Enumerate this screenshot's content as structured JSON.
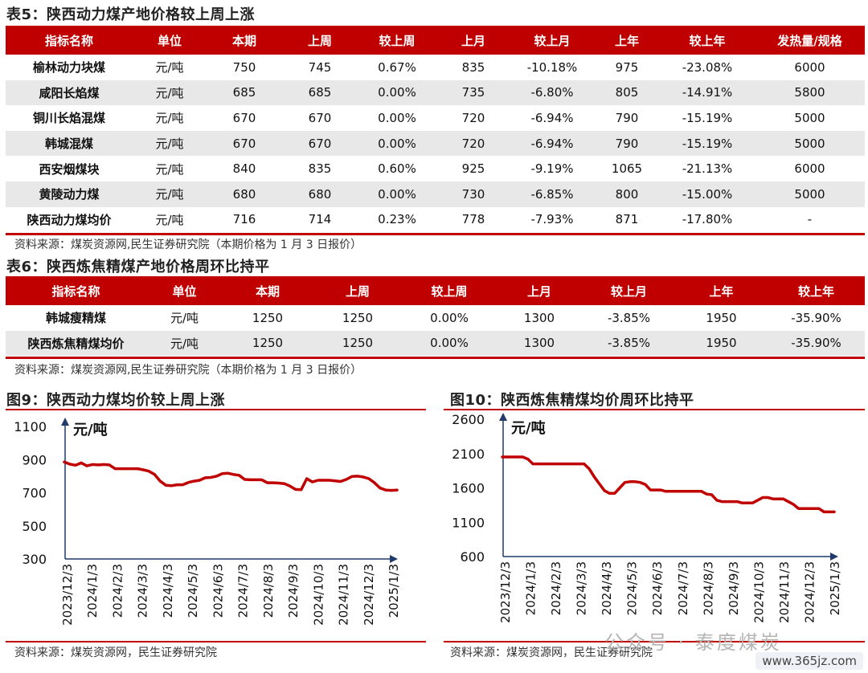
{
  "table5": {
    "title": "表5：陕西动力煤产地价格较上周上涨",
    "headers": [
      "指标名称",
      "单位",
      "本期",
      "上周",
      "较上周",
      "上月",
      "较上月",
      "上年",
      "较上年",
      "发热量/规格"
    ],
    "rows": [
      [
        "榆林动力块煤",
        "元/吨",
        "750",
        "745",
        "0.67%",
        "835",
        "-10.18%",
        "975",
        "-23.08%",
        "6000"
      ],
      [
        "咸阳长焰煤",
        "元/吨",
        "685",
        "685",
        "0.00%",
        "735",
        "-6.80%",
        "805",
        "-14.91%",
        "5800"
      ],
      [
        "铜川长焰混煤",
        "元/吨",
        "670",
        "670",
        "0.00%",
        "720",
        "-6.94%",
        "790",
        "-15.19%",
        "5000"
      ],
      [
        "韩城混煤",
        "元/吨",
        "670",
        "670",
        "0.00%",
        "720",
        "-6.94%",
        "790",
        "-15.19%",
        "5000"
      ],
      [
        "西安烟煤块",
        "元/吨",
        "840",
        "835",
        "0.60%",
        "925",
        "-9.19%",
        "1065",
        "-21.13%",
        "6000"
      ],
      [
        "黄陵动力煤",
        "元/吨",
        "680",
        "680",
        "0.00%",
        "730",
        "-6.85%",
        "800",
        "-15.00%",
        "5000"
      ],
      [
        "陕西动力煤均价",
        "元/吨",
        "716",
        "714",
        "0.23%",
        "778",
        "-7.93%",
        "871",
        "-17.80%",
        "-"
      ]
    ],
    "source": "资料来源：煤炭资源网,民生证券研究院（本期价格为 1 月 3 日报价）"
  },
  "table6": {
    "title": "表6：陕西炼焦精煤产地价格周环比持平",
    "headers": [
      "指标名称",
      "单位",
      "本期",
      "上周",
      "较上周",
      "上月",
      "较上月",
      "上年",
      "较上年"
    ],
    "rows": [
      [
        "韩城瘦精煤",
        "元/吨",
        "1250",
        "1250",
        "0.00%",
        "1300",
        "-3.85%",
        "1950",
        "-35.90%"
      ],
      [
        "陕西炼焦精煤均价",
        "元/吨",
        "1250",
        "1250",
        "0.00%",
        "1300",
        "-3.85%",
        "1950",
        "-35.90%"
      ]
    ],
    "source": "资料来源：煤炭资源网,民生证券研究院（本期价格为 1 月 3 日报价）"
  },
  "chart_data": [
    {
      "type": "line",
      "title": "图9：陕西动力煤均价较上周上涨",
      "unit_label": "元/吨",
      "ylim": [
        300,
        1100
      ],
      "yticks": [
        300,
        500,
        700,
        900,
        1100
      ],
      "xticks": [
        "2023/12/3",
        "2024/1/3",
        "2024/2/3",
        "2024/3/3",
        "2024/4/3",
        "2024/5/3",
        "2024/6/3",
        "2024/7/3",
        "2024/8/3",
        "2024/9/3",
        "2024/10/3",
        "2024/11/3",
        "2024/12/3",
        "2025/1/3"
      ],
      "color": "#c00000",
      "values": [
        885,
        872,
        866,
        880,
        862,
        870,
        868,
        870,
        868,
        845,
        845,
        845,
        845,
        845,
        838,
        830,
        810,
        770,
        745,
        742,
        748,
        748,
        762,
        770,
        775,
        790,
        792,
        800,
        815,
        818,
        810,
        805,
        780,
        778,
        778,
        778,
        760,
        760,
        758,
        755,
        740,
        720,
        718,
        785,
        765,
        775,
        775,
        775,
        772,
        768,
        780,
        798,
        800,
        795,
        785,
        760,
        728,
        716,
        714,
        716
      ],
      "source": "资料来源：煤炭资源网，民生证券研究院"
    },
    {
      "type": "line",
      "title": "图10：陕西炼焦精煤均价周环比持平",
      "unit_label": "元/吨",
      "ylim": [
        600,
        2600
      ],
      "yticks": [
        600,
        1100,
        1600,
        2100,
        2600
      ],
      "xticks": [
        "2023/12/3",
        "2024/1/3",
        "2024/2/3",
        "2024/3/3",
        "2024/4/3",
        "2024/5/3",
        "2024/6/3",
        "2024/7/3",
        "2024/8/3",
        "2024/9/3",
        "2024/10/3",
        "2024/11/3",
        "2024/12/3",
        "2025/1/3"
      ],
      "color": "#c00000",
      "values": [
        2050,
        2050,
        2050,
        2050,
        2050,
        2020,
        1950,
        1950,
        1950,
        1950,
        1950,
        1950,
        1950,
        1950,
        1950,
        1950,
        1950,
        1880,
        1760,
        1660,
        1560,
        1520,
        1520,
        1600,
        1680,
        1690,
        1690,
        1680,
        1650,
        1570,
        1570,
        1570,
        1550,
        1550,
        1550,
        1550,
        1550,
        1550,
        1550,
        1550,
        1510,
        1500,
        1420,
        1400,
        1400,
        1400,
        1400,
        1380,
        1380,
        1380,
        1420,
        1460,
        1460,
        1440,
        1440,
        1440,
        1400,
        1360,
        1300,
        1300,
        1300,
        1300,
        1300,
        1250,
        1250,
        1250
      ],
      "source": "资料来源：煤炭资源网，民生证券研究院"
    }
  ],
  "watermark": "公众号 · 泰度煤炭",
  "site": "www.365jz.com"
}
